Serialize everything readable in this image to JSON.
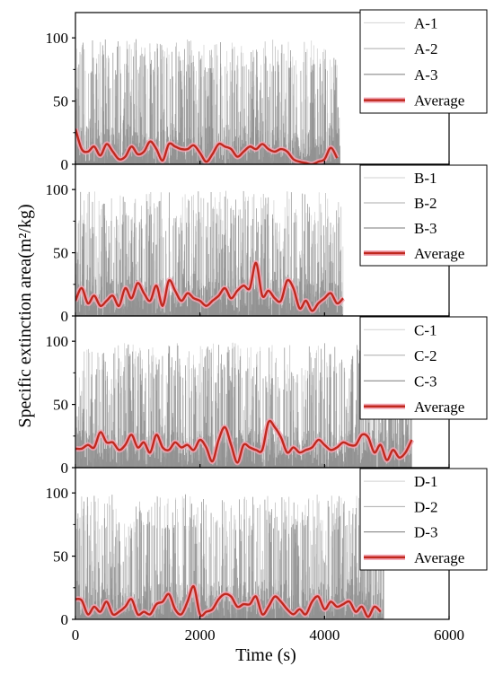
{
  "chart_data": {
    "type": "line",
    "xlabel": "Time (s)",
    "ylabel": "Specific extinction area(m²/kg)",
    "xlim": [
      0,
      6000
    ],
    "ylim": [
      0,
      120
    ],
    "xticks": [
      0,
      2000,
      4000,
      6000
    ],
    "yticks": [
      0,
      50,
      100
    ],
    "grid": false,
    "legend_position": "top-right",
    "colors": {
      "average": "#c0281e",
      "average_shadow": "#f2a5b3",
      "replicate_1": "#d2d2d2",
      "replicate_2": "#ababab",
      "replicate_3": "#7a7a7a"
    },
    "panels": [
      {
        "id": "A",
        "end_time": 4250,
        "series": [
          {
            "name": "A-1"
          },
          {
            "name": "A-2"
          },
          {
            "name": "A-3"
          },
          {
            "name": "Average",
            "x": [
              0,
              100,
              200,
              300,
              400,
              500,
              600,
              700,
              800,
              900,
              1000,
              1100,
              1200,
              1300,
              1400,
              1500,
              1600,
              1700,
              1800,
              1900,
              2000,
              2100,
              2200,
              2300,
              2400,
              2500,
              2600,
              2700,
              2800,
              2900,
              3000,
              3100,
              3200,
              3300,
              3400,
              3500,
              3600,
              3700,
              3800,
              3900,
              4000,
              4100,
              4200
            ],
            "y": [
              28,
              12,
              10,
              14,
              7,
              16,
              10,
              4,
              6,
              14,
              8,
              10,
              18,
              12,
              3,
              16,
              14,
              12,
              12,
              15,
              9,
              2,
              8,
              16,
              14,
              12,
              6,
              10,
              14,
              12,
              16,
              12,
              10,
              12,
              10,
              4,
              2,
              1,
              0,
              2,
              4,
              13,
              5
            ]
          }
        ]
      },
      {
        "id": "B",
        "end_time": 4300,
        "series": [
          {
            "name": "B-1"
          },
          {
            "name": "B-2"
          },
          {
            "name": "B-3"
          },
          {
            "name": "Average",
            "x": [
              0,
              100,
              200,
              300,
              400,
              500,
              600,
              700,
              800,
              900,
              1000,
              1100,
              1200,
              1300,
              1400,
              1500,
              1600,
              1700,
              1800,
              1900,
              2000,
              2100,
              2200,
              2300,
              2400,
              2500,
              2600,
              2700,
              2800,
              2900,
              3000,
              3100,
              3200,
              3300,
              3400,
              3500,
              3600,
              3700,
              3800,
              3900,
              4000,
              4100,
              4200,
              4300
            ],
            "y": [
              12,
              22,
              10,
              16,
              8,
              12,
              16,
              8,
              22,
              14,
              26,
              18,
              12,
              24,
              8,
              28,
              20,
              12,
              18,
              14,
              12,
              8,
              12,
              16,
              22,
              14,
              20,
              24,
              22,
              42,
              16,
              20,
              14,
              12,
              28,
              22,
              6,
              12,
              4,
              10,
              14,
              18,
              10,
              14
            ]
          }
        ]
      },
      {
        "id": "C",
        "end_time": 5400,
        "series": [
          {
            "name": "C-1"
          },
          {
            "name": "C-2"
          },
          {
            "name": "C-3"
          },
          {
            "name": "Average",
            "x": [
              0,
              100,
              200,
              300,
              400,
              500,
              600,
              700,
              800,
              900,
              1000,
              1100,
              1200,
              1300,
              1400,
              1500,
              1600,
              1700,
              1800,
              1900,
              2000,
              2100,
              2200,
              2300,
              2400,
              2500,
              2600,
              2700,
              2800,
              2900,
              3000,
              3100,
              3200,
              3300,
              3400,
              3500,
              3600,
              3700,
              3800,
              3900,
              4000,
              4100,
              4200,
              4300,
              4400,
              4500,
              4600,
              4700,
              4800,
              4900,
              5000,
              5100,
              5200,
              5300,
              5400
            ],
            "y": [
              15,
              15,
              18,
              16,
              28,
              20,
              20,
              14,
              18,
              26,
              16,
              20,
              12,
              26,
              16,
              14,
              20,
              16,
              18,
              14,
              22,
              16,
              5,
              22,
              32,
              18,
              4,
              18,
              16,
              14,
              14,
              36,
              32,
              24,
              12,
              16,
              12,
              14,
              16,
              22,
              18,
              14,
              16,
              20,
              18,
              18,
              26,
              24,
              12,
              18,
              6,
              14,
              8,
              12,
              22
            ]
          }
        ]
      },
      {
        "id": "D",
        "end_time": 4950,
        "series": [
          {
            "name": "D-1"
          },
          {
            "name": "D-2"
          },
          {
            "name": "D-3"
          },
          {
            "name": "Average",
            "x": [
              0,
              100,
              200,
              300,
              400,
              500,
              600,
              700,
              800,
              900,
              1000,
              1100,
              1200,
              1300,
              1400,
              1500,
              1600,
              1700,
              1800,
              1900,
              2000,
              2100,
              2200,
              2300,
              2400,
              2500,
              2600,
              2700,
              2800,
              2900,
              3000,
              3100,
              3200,
              3300,
              3400,
              3500,
              3600,
              3700,
              3800,
              3900,
              4000,
              4100,
              4200,
              4300,
              4400,
              4500,
              4600,
              4700,
              4800,
              4900
            ],
            "y": [
              16,
              15,
              4,
              10,
              6,
              14,
              4,
              6,
              10,
              16,
              4,
              6,
              4,
              12,
              14,
              20,
              8,
              4,
              14,
              26,
              4,
              6,
              8,
              16,
              20,
              18,
              10,
              12,
              12,
              18,
              4,
              10,
              18,
              14,
              8,
              4,
              8,
              4,
              14,
              18,
              8,
              14,
              10,
              12,
              14,
              6,
              10,
              2,
              10,
              6
            ]
          }
        ]
      }
    ]
  }
}
